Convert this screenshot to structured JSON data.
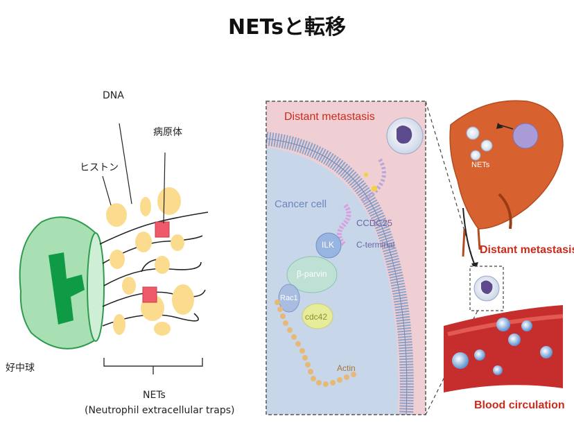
{
  "title": "NETsと転移",
  "left": {
    "dna_label": "DNA",
    "pathogen_label": "病原体",
    "histone_label": "ヒストン",
    "neutrophil_label": "好中球",
    "nets_label": "NETs",
    "nets_full_label": "(Neutrophil extracellular traps)"
  },
  "right": {
    "panel_title": "Distant metastasis",
    "cancer_cell": "Cancer cell",
    "ccdc25": "CCDC25",
    "ilk": "ILK",
    "c_terminal": "C-terminal",
    "beta_parvin": "β-parvin",
    "rac1": "Rac1",
    "cdc42": "cdc42",
    "actin": "Actin",
    "nets": "NETs",
    "distant_metastasis": "Distant metastasis",
    "blood_circulation": "Blood circulation"
  },
  "colors": {
    "neutrophil_fill": "#a8e0b4",
    "nucleus": "#0f9a45",
    "histone": "#fbdc8e",
    "pathogen": "#ef5a6a",
    "liver": "#d8622f",
    "red_label": "#cc2a1a"
  }
}
